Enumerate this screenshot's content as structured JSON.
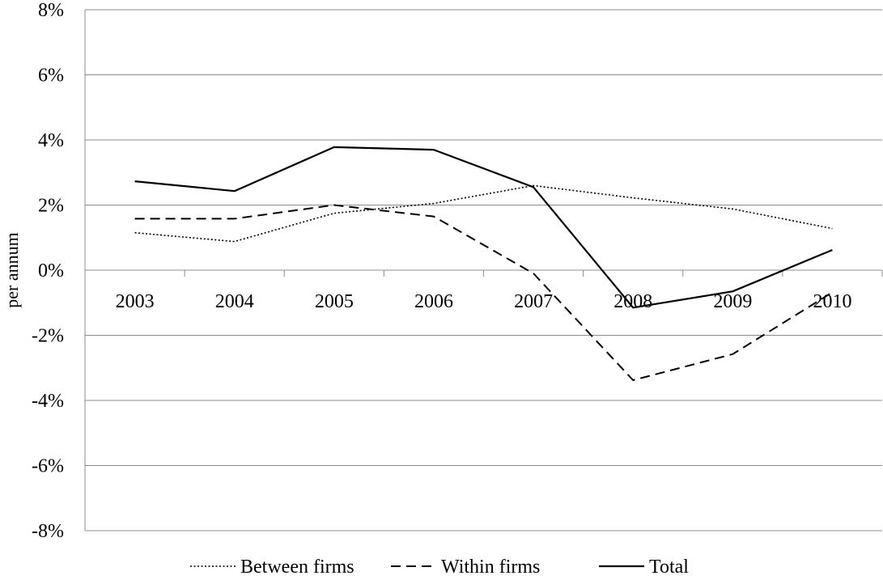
{
  "chart_data": {
    "type": "line",
    "title": "",
    "xlabel": "",
    "ylabel": "per annum",
    "categories": [
      "2003",
      "2004",
      "2005",
      "2006",
      "2007",
      "2008",
      "2009",
      "2010"
    ],
    "y_ticks": [
      "8%",
      "6%",
      "4%",
      "2%",
      "0%",
      "-2%",
      "-4%",
      "-6%",
      "-8%"
    ],
    "ylim": [
      -8,
      8
    ],
    "y_unit": "%",
    "grid": "horizontal",
    "legend_position": "bottom",
    "series": [
      {
        "name": "Between firms",
        "style": "dotted",
        "color": "#000000",
        "values": [
          1.15,
          0.88,
          1.75,
          2.05,
          2.6,
          2.22,
          1.88,
          1.28
        ]
      },
      {
        "name": "Within firms",
        "style": "dashed",
        "color": "#000000",
        "values": [
          1.58,
          1.58,
          2.0,
          1.65,
          -0.1,
          -3.38,
          -2.58,
          -0.68
        ]
      },
      {
        "name": "Total",
        "style": "solid",
        "color": "#000000",
        "values": [
          2.73,
          2.43,
          3.78,
          3.7,
          2.55,
          -1.15,
          -0.65,
          0.62
        ]
      }
    ]
  }
}
